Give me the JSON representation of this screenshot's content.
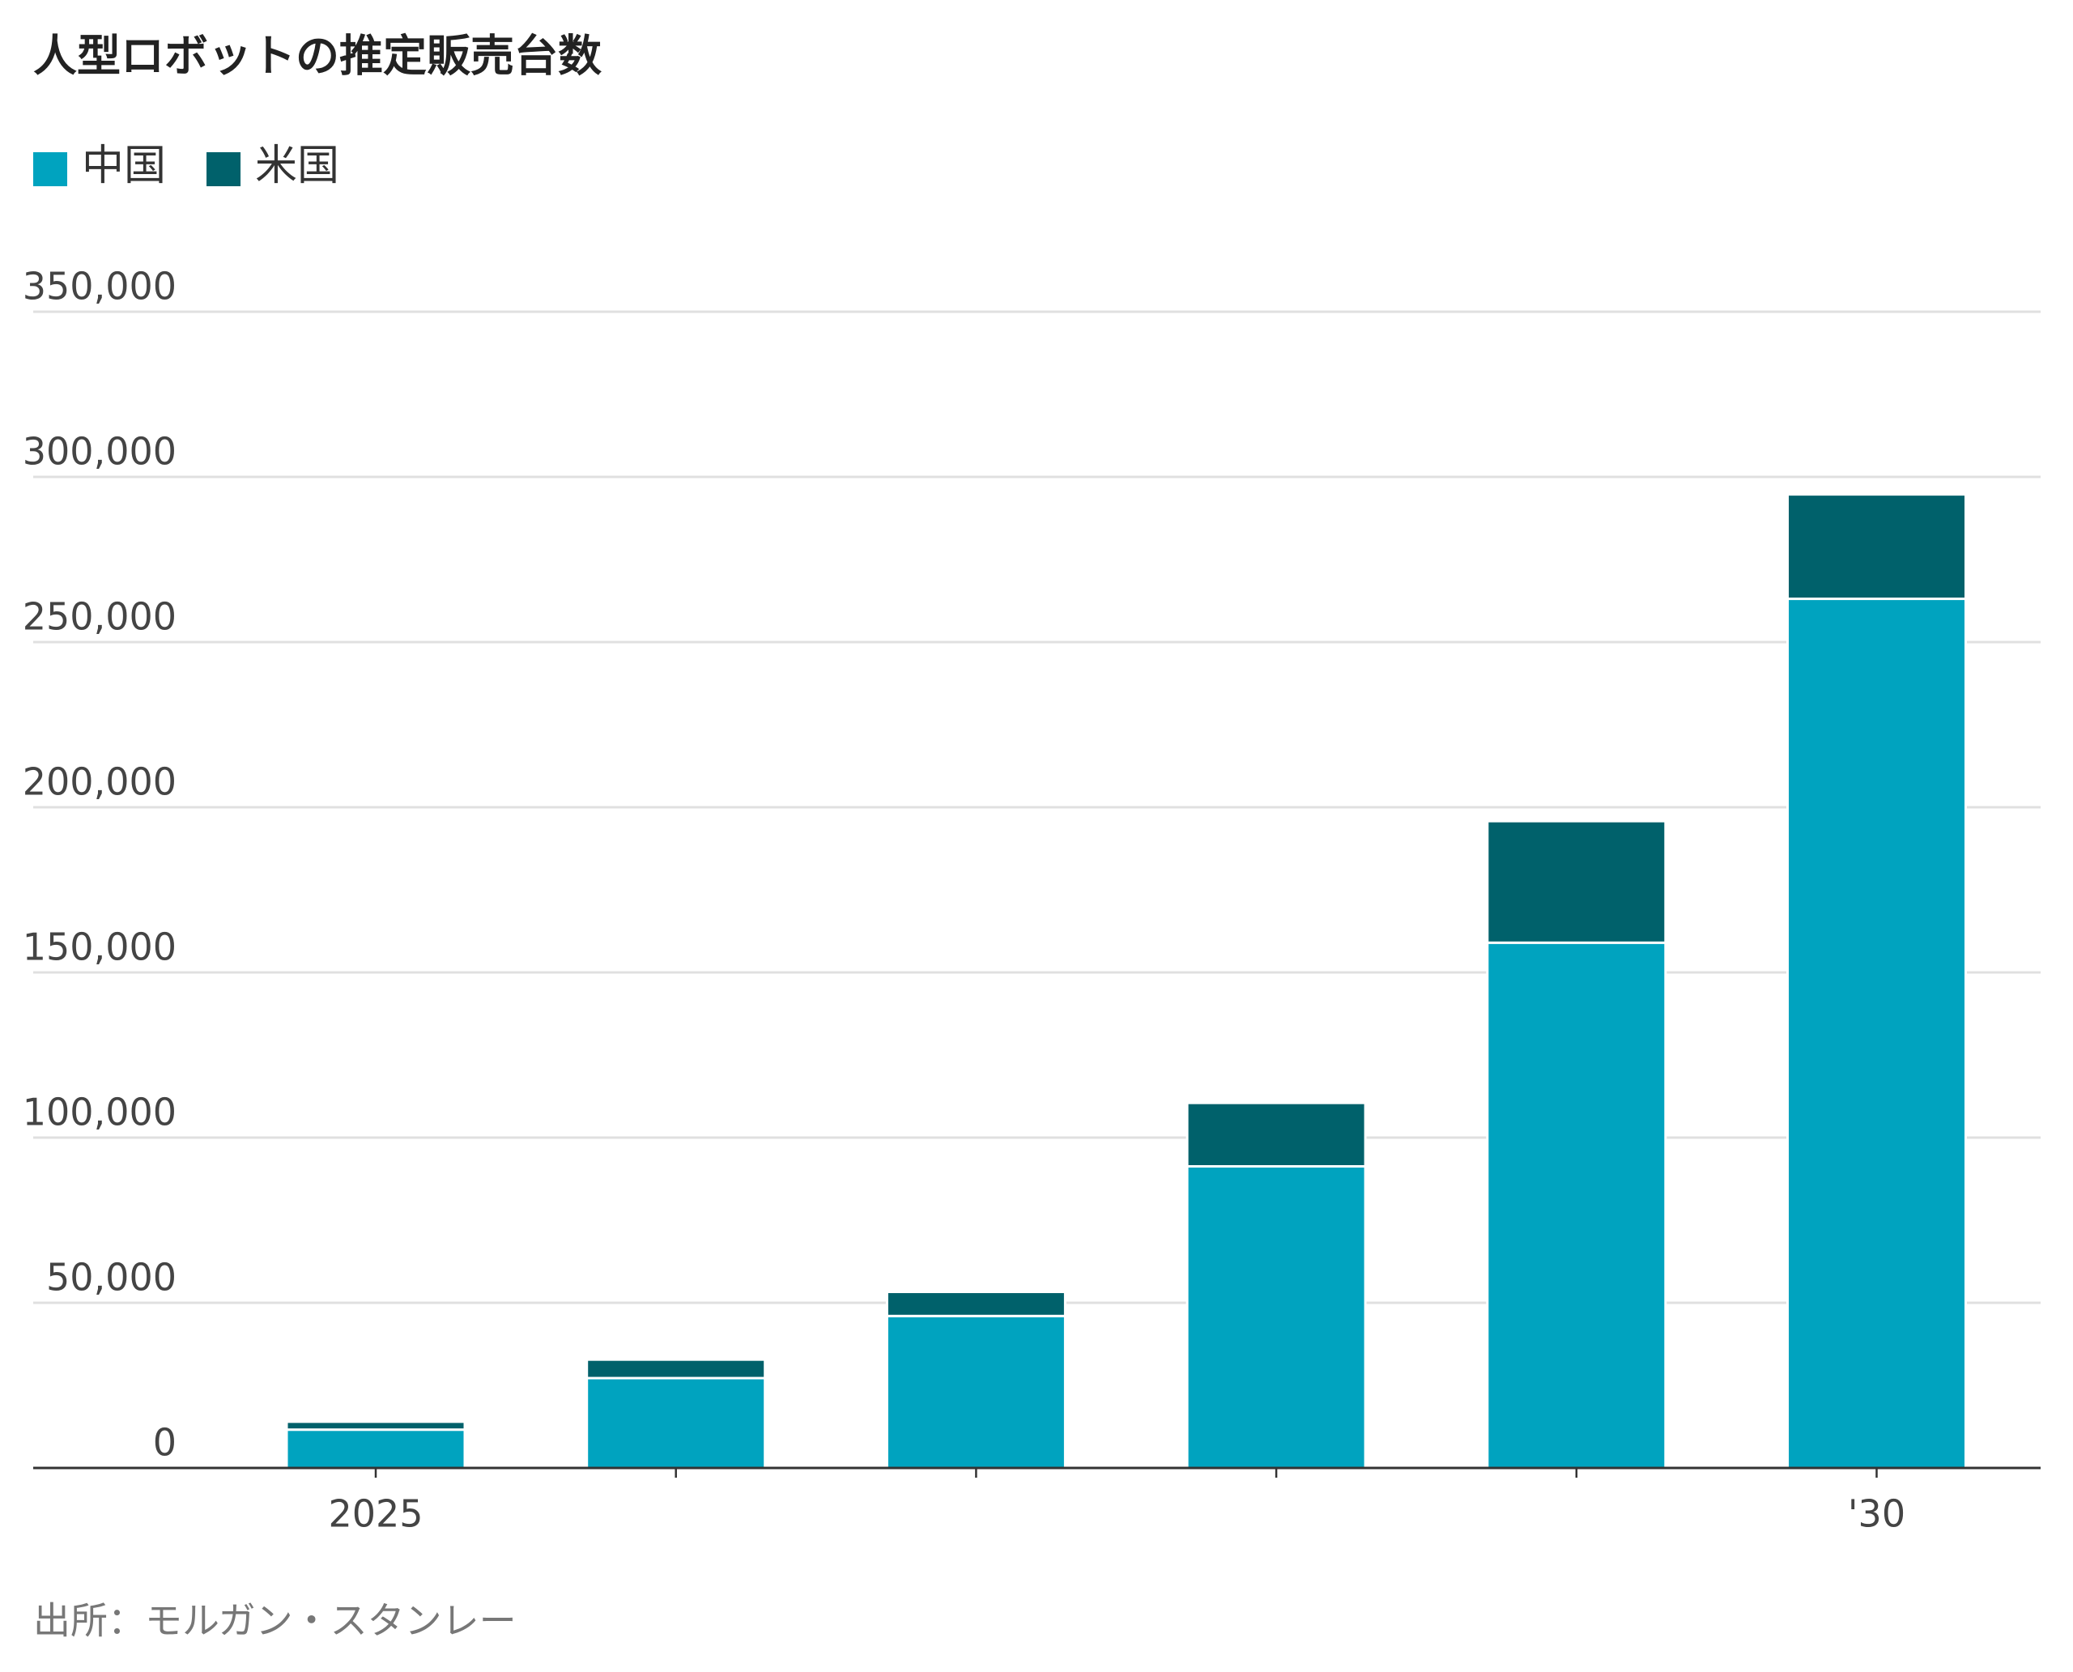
{
  "chart_data": {
    "type": "stacked_bar",
    "title": "人型ロボットの推定販売台数",
    "categories": [
      "2025",
      null,
      null,
      null,
      null,
      "'30"
    ],
    "series": [
      {
        "name": "中国",
        "color": "#00a3bf",
        "values": [
          11600,
          27200,
          46000,
          91300,
          159000,
          263100
        ]
      },
      {
        "name": "米国",
        "color": "#00616b",
        "values": [
          2400,
          5600,
          7300,
          19200,
          36800,
          31600
        ]
      }
    ],
    "ylim": [
      0,
      350000
    ],
    "yticks": [
      0,
      {
        "value": 50000,
        "label": "50,000"
      },
      {
        "value": 100000,
        "label": "100,000"
      },
      {
        "value": 150000,
        "label": "150,000"
      },
      {
        "value": 200000,
        "label": "200,000"
      },
      {
        "value": 250000,
        "label": "250,000"
      },
      {
        "value": 300000,
        "label": "300,000"
      },
      {
        "value": 350000,
        "label": "350,000"
      }
    ],
    "grid": true,
    "source": "出所：モルガン・スタンレー"
  }
}
